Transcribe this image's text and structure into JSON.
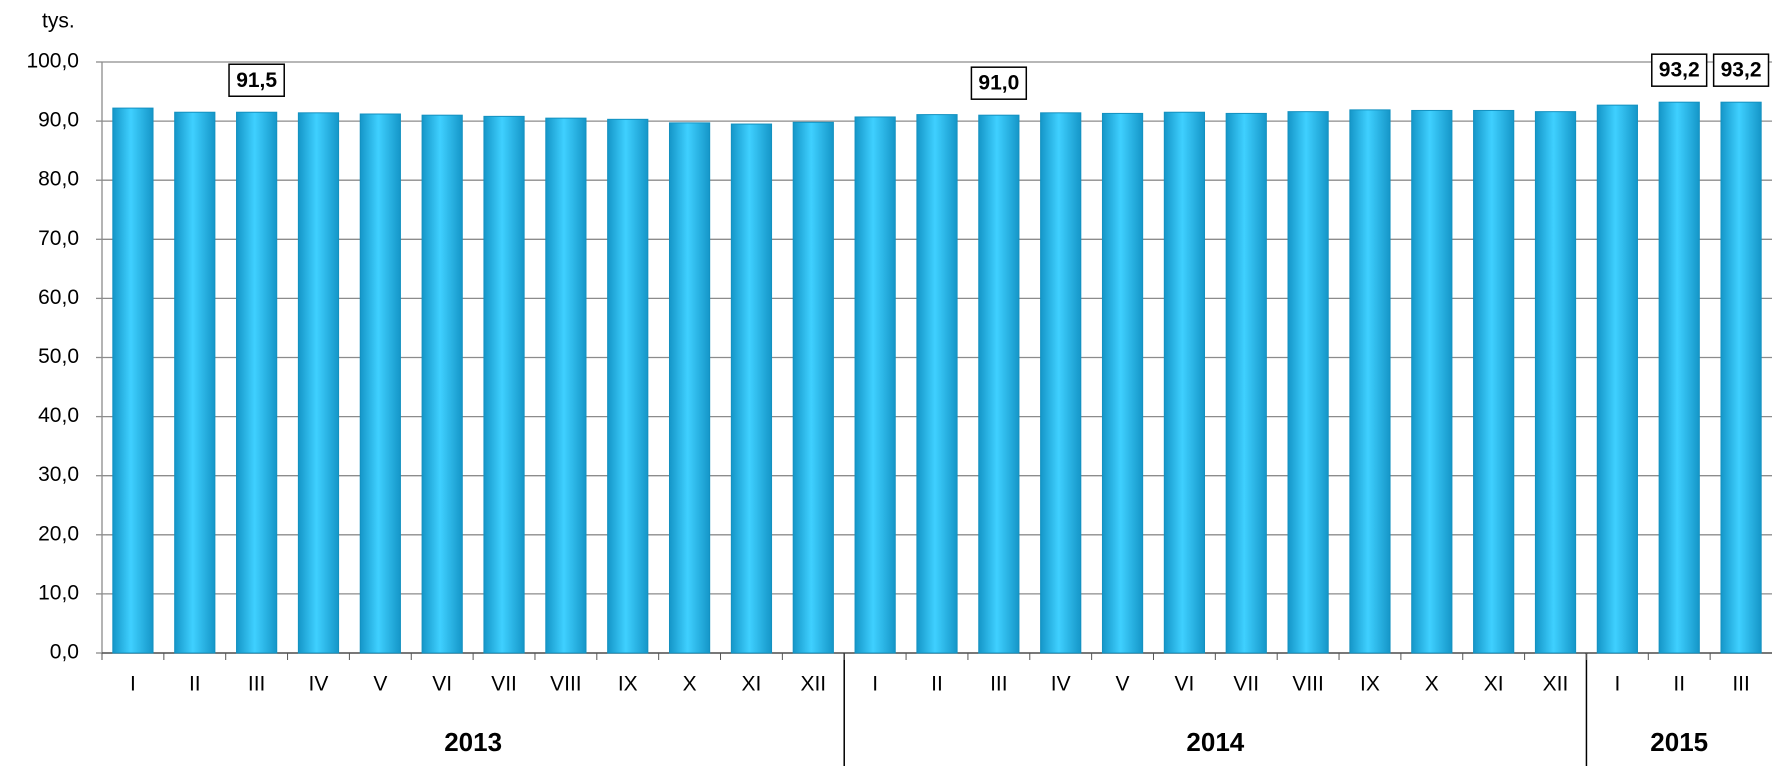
{
  "chart_data": {
    "type": "bar",
    "unit_label": "tys.",
    "groups": [
      {
        "label": "2013",
        "categories": [
          "I",
          "II",
          "III",
          "IV",
          "V",
          "VI",
          "VII",
          "VIII",
          "IX",
          "X",
          "XI",
          "XII"
        ]
      },
      {
        "label": "2014",
        "categories": [
          "I",
          "II",
          "III",
          "IV",
          "V",
          "VI",
          "VII",
          "VIII",
          "IX",
          "X",
          "XI",
          "XII"
        ]
      },
      {
        "label": "2015",
        "categories": [
          "I",
          "II",
          "III"
        ]
      }
    ],
    "values": [
      92.2,
      91.5,
      91.5,
      91.4,
      91.2,
      91.0,
      90.8,
      90.5,
      90.3,
      89.7,
      89.5,
      89.8,
      90.7,
      91.1,
      91.0,
      91.4,
      91.3,
      91.5,
      91.3,
      91.6,
      91.9,
      91.8,
      91.8,
      91.6,
      92.7,
      93.2,
      93.2
    ],
    "value_labels": [
      null,
      null,
      "91,5",
      null,
      null,
      null,
      null,
      null,
      null,
      null,
      null,
      null,
      null,
      null,
      "91,0",
      null,
      null,
      null,
      null,
      null,
      null,
      null,
      null,
      null,
      null,
      "93,2",
      "93,2"
    ],
    "color": "#1fb4e8",
    "ylim": [
      0,
      100
    ],
    "yticks": [
      {
        "value": 0,
        "label": "0,0"
      },
      {
        "value": 10,
        "label": "10,0"
      },
      {
        "value": 20,
        "label": "20,0"
      },
      {
        "value": 30,
        "label": "30,0"
      },
      {
        "value": 40,
        "label": "40,0"
      },
      {
        "value": 50,
        "label": "50,0"
      },
      {
        "value": 60,
        "label": "60,0"
      },
      {
        "value": 70,
        "label": "70,0"
      },
      {
        "value": 80,
        "label": "80,0"
      },
      {
        "value": 90,
        "label": "90,0"
      },
      {
        "value": 100,
        "label": "100,0"
      }
    ],
    "grid": true
  }
}
